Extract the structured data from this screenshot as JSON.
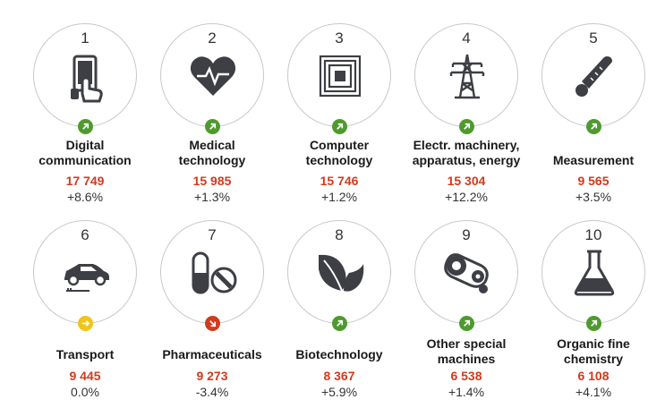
{
  "colors": {
    "accent_value": "#d23a1e",
    "trend_up": "#4e9a2e",
    "trend_flat": "#f0c419",
    "trend_down": "#d23a1e",
    "icon": "#3d3f45"
  },
  "items": [
    {
      "rank": "1",
      "label_line1": "Digital",
      "label_line2": "communication",
      "value": "17 749",
      "change": "+8.6%",
      "trend": "up",
      "icon": "touch-phone-icon"
    },
    {
      "rank": "2",
      "label_line1": "Medical",
      "label_line2": "technology",
      "value": "15 985",
      "change": "+1.3%",
      "trend": "up",
      "icon": "heart-pulse-icon"
    },
    {
      "rank": "3",
      "label_line1": "Computer",
      "label_line2": "technology",
      "value": "15 746",
      "change": "+1.2%",
      "trend": "up",
      "icon": "chip-icon"
    },
    {
      "rank": "4",
      "label_line1": "Electr. machinery,",
      "label_line2": "apparatus, energy",
      "value": "15 304",
      "change": "+12.2%",
      "trend": "up",
      "icon": "power-pylon-icon"
    },
    {
      "rank": "5",
      "label_line1": "Measurement",
      "label_line2": "",
      "value": "9 565",
      "change": "+3.5%",
      "trend": "up",
      "icon": "thermometer-icon"
    },
    {
      "rank": "6",
      "label_line1": "Transport",
      "label_line2": "",
      "value": "9 445",
      "change": "0.0%",
      "trend": "flat",
      "icon": "electric-car-icon"
    },
    {
      "rank": "7",
      "label_line1": "Pharmaceuticals",
      "label_line2": "",
      "value": "9 273",
      "change": "-3.4%",
      "trend": "down",
      "icon": "pills-icon"
    },
    {
      "rank": "8",
      "label_line1": "Biotechnology",
      "label_line2": "",
      "value": "8 367",
      "change": "+5.9%",
      "trend": "up",
      "icon": "leaves-icon"
    },
    {
      "rank": "9",
      "label_line1": "Other special",
      "label_line2": "machines",
      "value": "6 538",
      "change": "+1.4%",
      "trend": "up",
      "icon": "gear-belt-icon"
    },
    {
      "rank": "10",
      "label_line1": "Organic fine",
      "label_line2": "chemistry",
      "value": "6 108",
      "change": "+4.1%",
      "trend": "up",
      "icon": "flask-icon"
    }
  ]
}
